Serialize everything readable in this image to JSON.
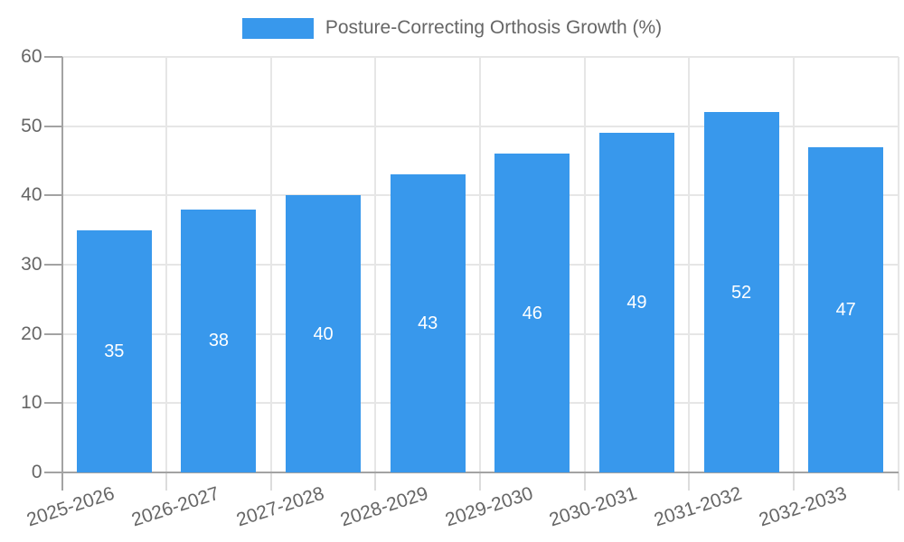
{
  "chart_data": {
    "type": "bar",
    "series_name": "Posture-Correcting Orthosis Growth (%)",
    "categories": [
      "2025-2026",
      "2026-2027",
      "2027-2028",
      "2028-2029",
      "2029-2030",
      "2030-2031",
      "2031-2032",
      "2032-2033"
    ],
    "values": [
      35,
      38,
      40,
      43,
      46,
      49,
      52,
      47
    ],
    "bar_value_labels": [
      "35",
      "38",
      "40",
      "43",
      "46",
      "49",
      "52",
      "47"
    ],
    "xlabel": "",
    "ylabel": "",
    "ylim": [
      0,
      60
    ],
    "yticks": [
      0,
      10,
      20,
      30,
      40,
      50,
      60
    ],
    "grid": "both",
    "legend_position": "top-center",
    "x_tick_rotation_deg": -18
  },
  "colors": {
    "bar": "#3898EC",
    "bar_label_text": "#FFFFFF",
    "axis_text": "#666666",
    "grid_line": "#E6E6E6",
    "axis_line": "#A3A3A3",
    "x_minor_tick": "#DCDCDC",
    "background": "#FFFFFF"
  }
}
